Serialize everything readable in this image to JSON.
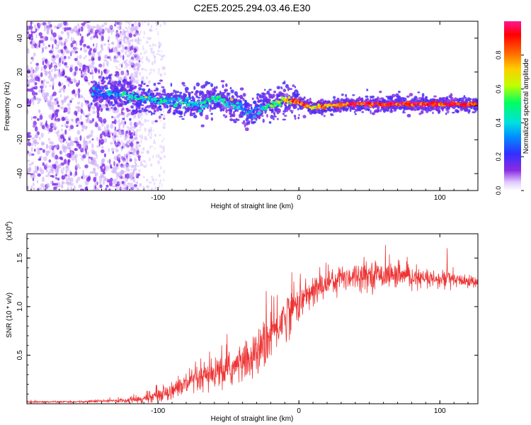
{
  "title": "C2E5.2025.294.03.46.E30",
  "colors": {
    "snr_line": "#ee3333",
    "frame": "#000000",
    "spectrogram_dots": "#7722ee",
    "colormap": [
      "#ffffff",
      "#e0c8ff",
      "#8a2be2",
      "#3030ff",
      "#0090ff",
      "#00e0e0",
      "#00ff60",
      "#c0ff00",
      "#ffcc00",
      "#ff6000",
      "#ff0000",
      "#ff1493"
    ]
  },
  "chart_data": [
    {
      "type": "heatmap",
      "title": "C2E5.2025.294.03.46.E30",
      "xlabel": "Height of straight line (km)",
      "ylabel": "Frequency (Hz)",
      "xlim": [
        -193,
        127
      ],
      "ylim": [
        -50,
        50
      ],
      "x_ticks": [
        -100,
        0,
        100
      ],
      "x_tick_labels": [
        "-100",
        "0",
        "100"
      ],
      "y_ticks": [
        -40,
        -20,
        0,
        20,
        40
      ],
      "y_tick_labels": [
        "-40",
        "-20",
        "0",
        "20",
        "40"
      ],
      "colorbar": {
        "label": "Normalized spectral amplitude",
        "range": [
          0,
          1
        ],
        "ticks": [
          0.0,
          0.2,
          0.4,
          0.6,
          0.8
        ],
        "tick_labels": [
          "0.0",
          "0.2",
          "0.4",
          "0.6",
          "0.8"
        ]
      },
      "ridge": {
        "description_points_x": [
          -145,
          -130,
          -115,
          -100,
          -85,
          -70,
          -60,
          -50,
          -40,
          -35,
          -30,
          -20,
          -12,
          -5,
          0,
          5,
          10,
          20,
          40,
          60,
          80,
          100,
          127
        ],
        "frequency_hz": [
          8,
          7,
          5,
          3,
          2,
          1,
          4,
          2,
          -1,
          -5,
          -2,
          0,
          3,
          2,
          2,
          0,
          -1,
          0,
          1,
          1,
          1,
          1,
          1
        ],
        "peak_amplitude": [
          0.3,
          0.35,
          0.4,
          0.4,
          0.4,
          0.4,
          0.45,
          0.4,
          0.35,
          0.3,
          0.3,
          0.5,
          0.6,
          0.75,
          0.85,
          0.8,
          0.7,
          0.75,
          0.85,
          0.9,
          0.9,
          0.9,
          0.9
        ]
      }
    },
    {
      "type": "line",
      "xlabel": "Height of straight line (km)",
      "ylabel": "SNR (10 * v/v)",
      "y_multiplier_label_base": "(x10",
      "y_multiplier_label_exp": "4",
      "y_multiplier_label_end": ")",
      "xlim": [
        -193,
        127
      ],
      "ylim": [
        0,
        1.75
      ],
      "x_ticks": [
        -100,
        0,
        100
      ],
      "x_tick_labels": [
        "-100",
        "0",
        "100"
      ],
      "y_ticks": [
        0.5,
        1.0,
        1.5
      ],
      "y_tick_labels": [
        "0.5",
        "1.0",
        "1.5"
      ],
      "series": [
        {
          "name": "SNR",
          "x": [
            -193,
            -160,
            -130,
            -110,
            -100,
            -90,
            -80,
            -70,
            -60,
            -50,
            -40,
            -30,
            -25,
            -20,
            -15,
            -10,
            -5,
            0,
            5,
            10,
            15,
            20,
            30,
            40,
            50,
            60,
            70,
            80,
            90,
            100,
            105,
            110,
            120,
            127
          ],
          "values": [
            0.02,
            0.02,
            0.03,
            0.05,
            0.09,
            0.14,
            0.2,
            0.25,
            0.3,
            0.35,
            0.42,
            0.5,
            0.6,
            0.7,
            0.8,
            0.9,
            0.98,
            1.05,
            1.1,
            1.15,
            1.2,
            1.25,
            1.3,
            1.32,
            1.33,
            1.33,
            1.32,
            1.3,
            1.28,
            1.27,
            1.3,
            1.27,
            1.26,
            1.25
          ],
          "noise": [
            0.01,
            0.01,
            0.02,
            0.04,
            0.07,
            0.09,
            0.12,
            0.15,
            0.17,
            0.18,
            0.2,
            0.22,
            0.25,
            0.26,
            0.26,
            0.25,
            0.22,
            0.2,
            0.18,
            0.17,
            0.16,
            0.15,
            0.14,
            0.14,
            0.14,
            0.13,
            0.12,
            0.1,
            0.09,
            0.08,
            0.15,
            0.07,
            0.06,
            0.05
          ]
        }
      ]
    }
  ]
}
